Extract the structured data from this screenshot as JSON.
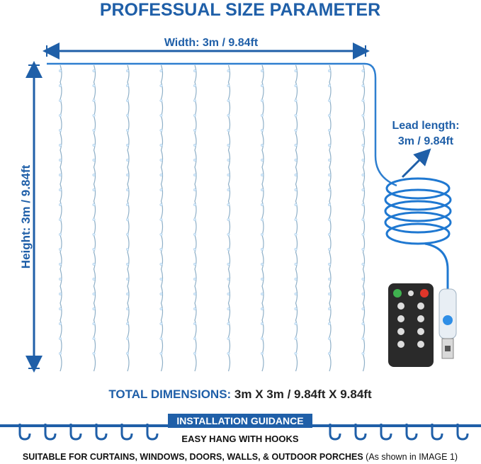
{
  "title": "PROFESSUAL SIZE PARAMETER",
  "width_label": "Width: 3m / 9.84ft",
  "height_label": "Height: 3m / 9.84ft",
  "lead_length": [
    "Lead length:",
    "3m / 9.84ft"
  ],
  "total_dimensions": {
    "label": "TOTAL DIMENSIONS:",
    "value": " 3m X 3m / 9.84ft X 9.84ft"
  },
  "installation": {
    "heading": "INSTALLATION GUIDANCE",
    "subheading": "EASY HANG WITH HOOKS",
    "note": "SUITABLE FOR CURTAINS, WINDOWS, DOORS, WALLS, & OUTDOOR PORCHES",
    "note_suffix": " (As shown in IMAGE 1)"
  }
}
